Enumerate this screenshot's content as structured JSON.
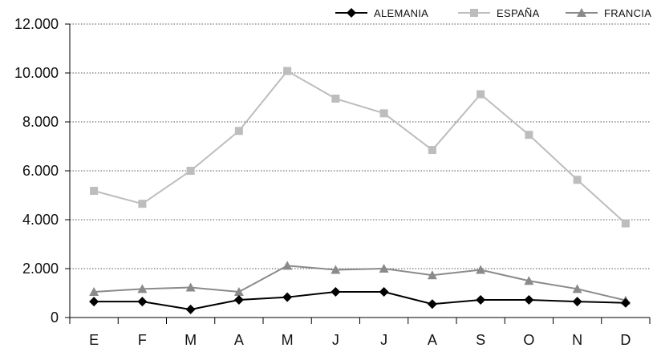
{
  "chart_data": {
    "type": "line",
    "title": "",
    "xlabel": "",
    "ylabel": "",
    "categories": [
      "E",
      "F",
      "M",
      "A",
      "M",
      "J",
      "J",
      "A",
      "S",
      "O",
      "N",
      "D"
    ],
    "y_ticks": [
      "0",
      "2.000",
      "4.000",
      "6.000",
      "8.000",
      "10.000",
      "12.000"
    ],
    "ylim": [
      0,
      12000
    ],
    "grid": "horizontal dotted",
    "legend_position": "top-right",
    "series": [
      {
        "name": "ALEMANIA",
        "color": "#000000",
        "marker": "diamond",
        "values": [
          650,
          650,
          330,
          720,
          830,
          1050,
          1050,
          550,
          720,
          720,
          650,
          600
        ]
      },
      {
        "name": "ESPAÑA",
        "color": "#bdbdbd",
        "marker": "square",
        "values": [
          5180,
          4650,
          6000,
          7630,
          10080,
          8950,
          8350,
          6850,
          9130,
          7470,
          5630,
          3850
        ]
      },
      {
        "name": "FRANCIA",
        "color": "#8a8a8a",
        "marker": "triangle",
        "values": [
          1050,
          1170,
          1230,
          1050,
          2120,
          1950,
          2000,
          1730,
          1950,
          1500,
          1170,
          700
        ]
      }
    ]
  }
}
